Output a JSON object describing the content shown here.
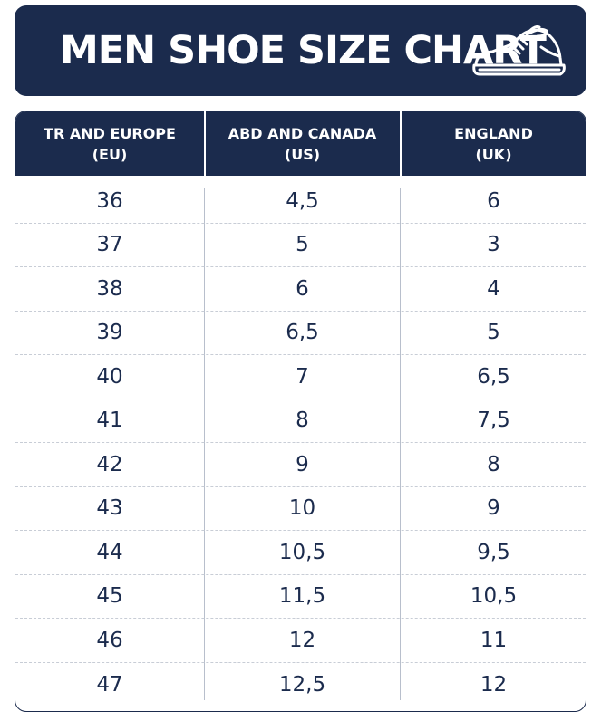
{
  "title": "MEN SHOE SIZE CHART",
  "icon": "sneaker-icon",
  "colors": {
    "navy": "#1b2b4d",
    "white": "#ffffff",
    "divider": "#c8cdd6"
  },
  "chart_data": {
    "type": "table",
    "title": "MEN SHOE SIZE CHART",
    "columns": [
      {
        "line1": "TR AND EUROPE",
        "line2": "(EU)"
      },
      {
        "line1": "ABD AND CANADA",
        "line2": "(US)"
      },
      {
        "line1": "ENGLAND",
        "line2": "(UK)"
      }
    ],
    "rows": [
      [
        "36",
        "4,5",
        "6"
      ],
      [
        "37",
        "5",
        "3"
      ],
      [
        "38",
        "6",
        "4"
      ],
      [
        "39",
        "6,5",
        "5"
      ],
      [
        "40",
        "7",
        "6,5"
      ],
      [
        "41",
        "8",
        "7,5"
      ],
      [
        "42",
        "9",
        "8"
      ],
      [
        "43",
        "10",
        "9"
      ],
      [
        "44",
        "10,5",
        "9,5"
      ],
      [
        "45",
        "11,5",
        "10,5"
      ],
      [
        "46",
        "12",
        "11"
      ],
      [
        "47",
        "12,5",
        "12"
      ]
    ]
  }
}
